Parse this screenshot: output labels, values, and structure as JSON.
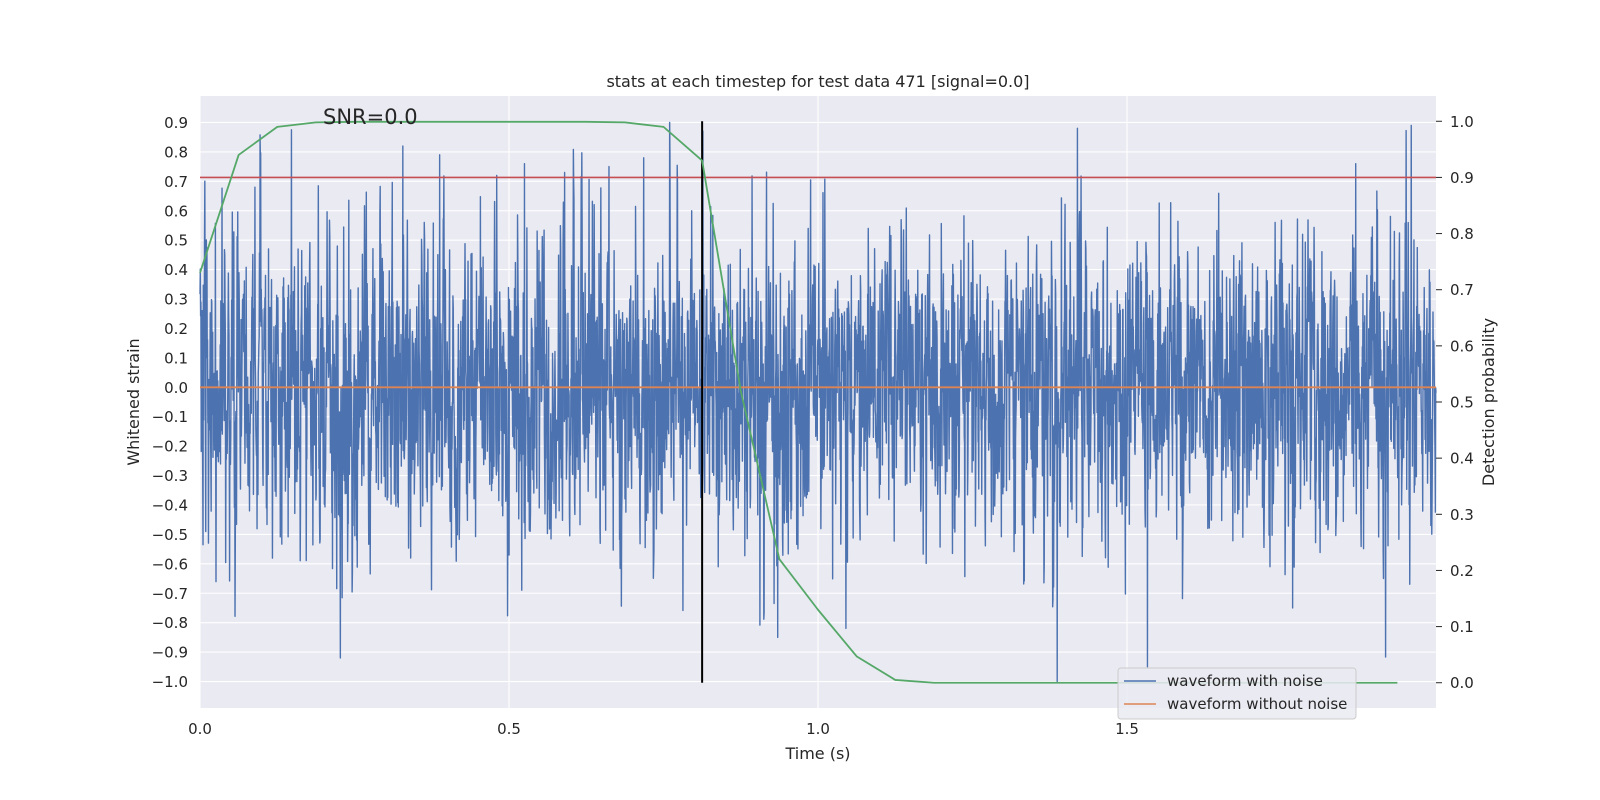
{
  "chart_data": {
    "type": "line",
    "title": "stats at each timestep for test data 471 [signal=0.0]",
    "annotation": "SNR=0.0",
    "xlabel": "Time (s)",
    "ylabel_left": "Whitened strain",
    "ylabel_right": "Detection probability",
    "xlim": [
      0.0,
      2.0
    ],
    "ylim_left": [
      -1.09,
      0.99
    ],
    "ylim_right": [
      -0.045,
      1.045
    ],
    "x_ticks": [
      0.0,
      0.5,
      1.0,
      1.5
    ],
    "x_tick_labels": [
      "0.0",
      "0.5",
      "1.0",
      "1.5"
    ],
    "y_left_ticks": [
      0.9,
      0.8,
      0.7,
      0.6,
      0.5,
      0.4,
      0.3,
      0.2,
      0.1,
      0.0,
      -0.1,
      -0.2,
      -0.3,
      -0.4,
      -0.5,
      -0.6,
      -0.7,
      -0.8,
      -0.9,
      -1.0
    ],
    "y_left_tick_labels": [
      "0.9",
      "0.8",
      "0.7",
      "0.6",
      "0.5",
      "0.4",
      "0.3",
      "0.2",
      "0.1",
      "0.0",
      "−0.1",
      "−0.2",
      "−0.3",
      "−0.4",
      "−0.5",
      "−0.6",
      "−0.7",
      "−0.8",
      "−0.9",
      "−1.0"
    ],
    "y_right_ticks": [
      1.0,
      0.9,
      0.8,
      0.7,
      0.6,
      0.5,
      0.4,
      0.3,
      0.2,
      0.1,
      0.0
    ],
    "y_right_tick_labels": [
      "1.0",
      "0.9",
      "0.8",
      "0.7",
      "0.6",
      "0.5",
      "0.4",
      "0.3",
      "0.2",
      "0.1",
      "0.0"
    ],
    "threshold": {
      "value": 0.9,
      "axis": "right",
      "color": "#c44e52"
    },
    "vertical_marker": {
      "x": 0.8125,
      "color": "#000000"
    },
    "grid": true,
    "series": [
      {
        "name": "waveform with noise",
        "color": "#4c72b0",
        "axis": "left",
        "noise_model": {
          "n_samples": 4096,
          "seed": 471,
          "amplitude_std": 0.24,
          "clip": [
            -1.0,
            0.9
          ]
        },
        "spikes": [
          {
            "x": 0.227,
            "y": -0.92
          },
          {
            "x": 0.328,
            "y": 0.82
          },
          {
            "x": 0.388,
            "y": 0.79
          },
          {
            "x": 0.48,
            "y": 0.72
          },
          {
            "x": 0.525,
            "y": 0.76
          },
          {
            "x": 0.59,
            "y": 0.73
          },
          {
            "x": 0.662,
            "y": 0.75
          },
          {
            "x": 0.718,
            "y": 0.78
          },
          {
            "x": 0.935,
            "y": -0.85
          },
          {
            "x": 1.387,
            "y": -1.0
          },
          {
            "x": 1.42,
            "y": 0.88
          },
          {
            "x": 1.533,
            "y": -0.95
          },
          {
            "x": 1.768,
            "y": -0.75
          },
          {
            "x": 1.87,
            "y": 0.76
          },
          {
            "x": 1.96,
            "y": 0.89
          }
        ]
      },
      {
        "name": "waveform without noise",
        "color": "#dd8452",
        "axis": "left",
        "x": [
          0.0,
          2.0
        ],
        "y": [
          0.0,
          0.0
        ]
      },
      {
        "name": "detection probability",
        "color": "#55a868",
        "axis": "right",
        "x": [
          0.0,
          0.0625,
          0.125,
          0.1875,
          0.25,
          0.3125,
          0.375,
          0.4375,
          0.5,
          0.5625,
          0.625,
          0.6875,
          0.75,
          0.8125,
          0.875,
          0.9375,
          1.0,
          1.0625,
          1.125,
          1.1875,
          1.25,
          1.3125,
          1.375,
          1.4375,
          1.5,
          1.5625,
          1.625,
          1.6875,
          1.75,
          1.8125,
          1.875,
          1.9375
        ],
        "y": [
          0.73,
          0.94,
          0.99,
          0.998,
          0.999,
          0.999,
          0.999,
          0.999,
          0.999,
          0.999,
          0.999,
          0.998,
          0.99,
          0.93,
          0.52,
          0.22,
          0.13,
          0.047,
          0.005,
          0.0,
          0.0,
          0.0,
          0.0,
          0.0,
          0.0,
          0.0,
          0.0,
          0.0,
          0.0,
          0.0,
          0.0,
          0.0
        ]
      }
    ],
    "legend": {
      "placement": "lower-right",
      "entries": [
        {
          "label": "waveform with noise",
          "color": "#4c72b0"
        },
        {
          "label": "waveform without noise",
          "color": "#dd8452"
        }
      ]
    },
    "colors": {
      "plot_background": "#eaeaf2",
      "grid": "#ffffff"
    }
  }
}
